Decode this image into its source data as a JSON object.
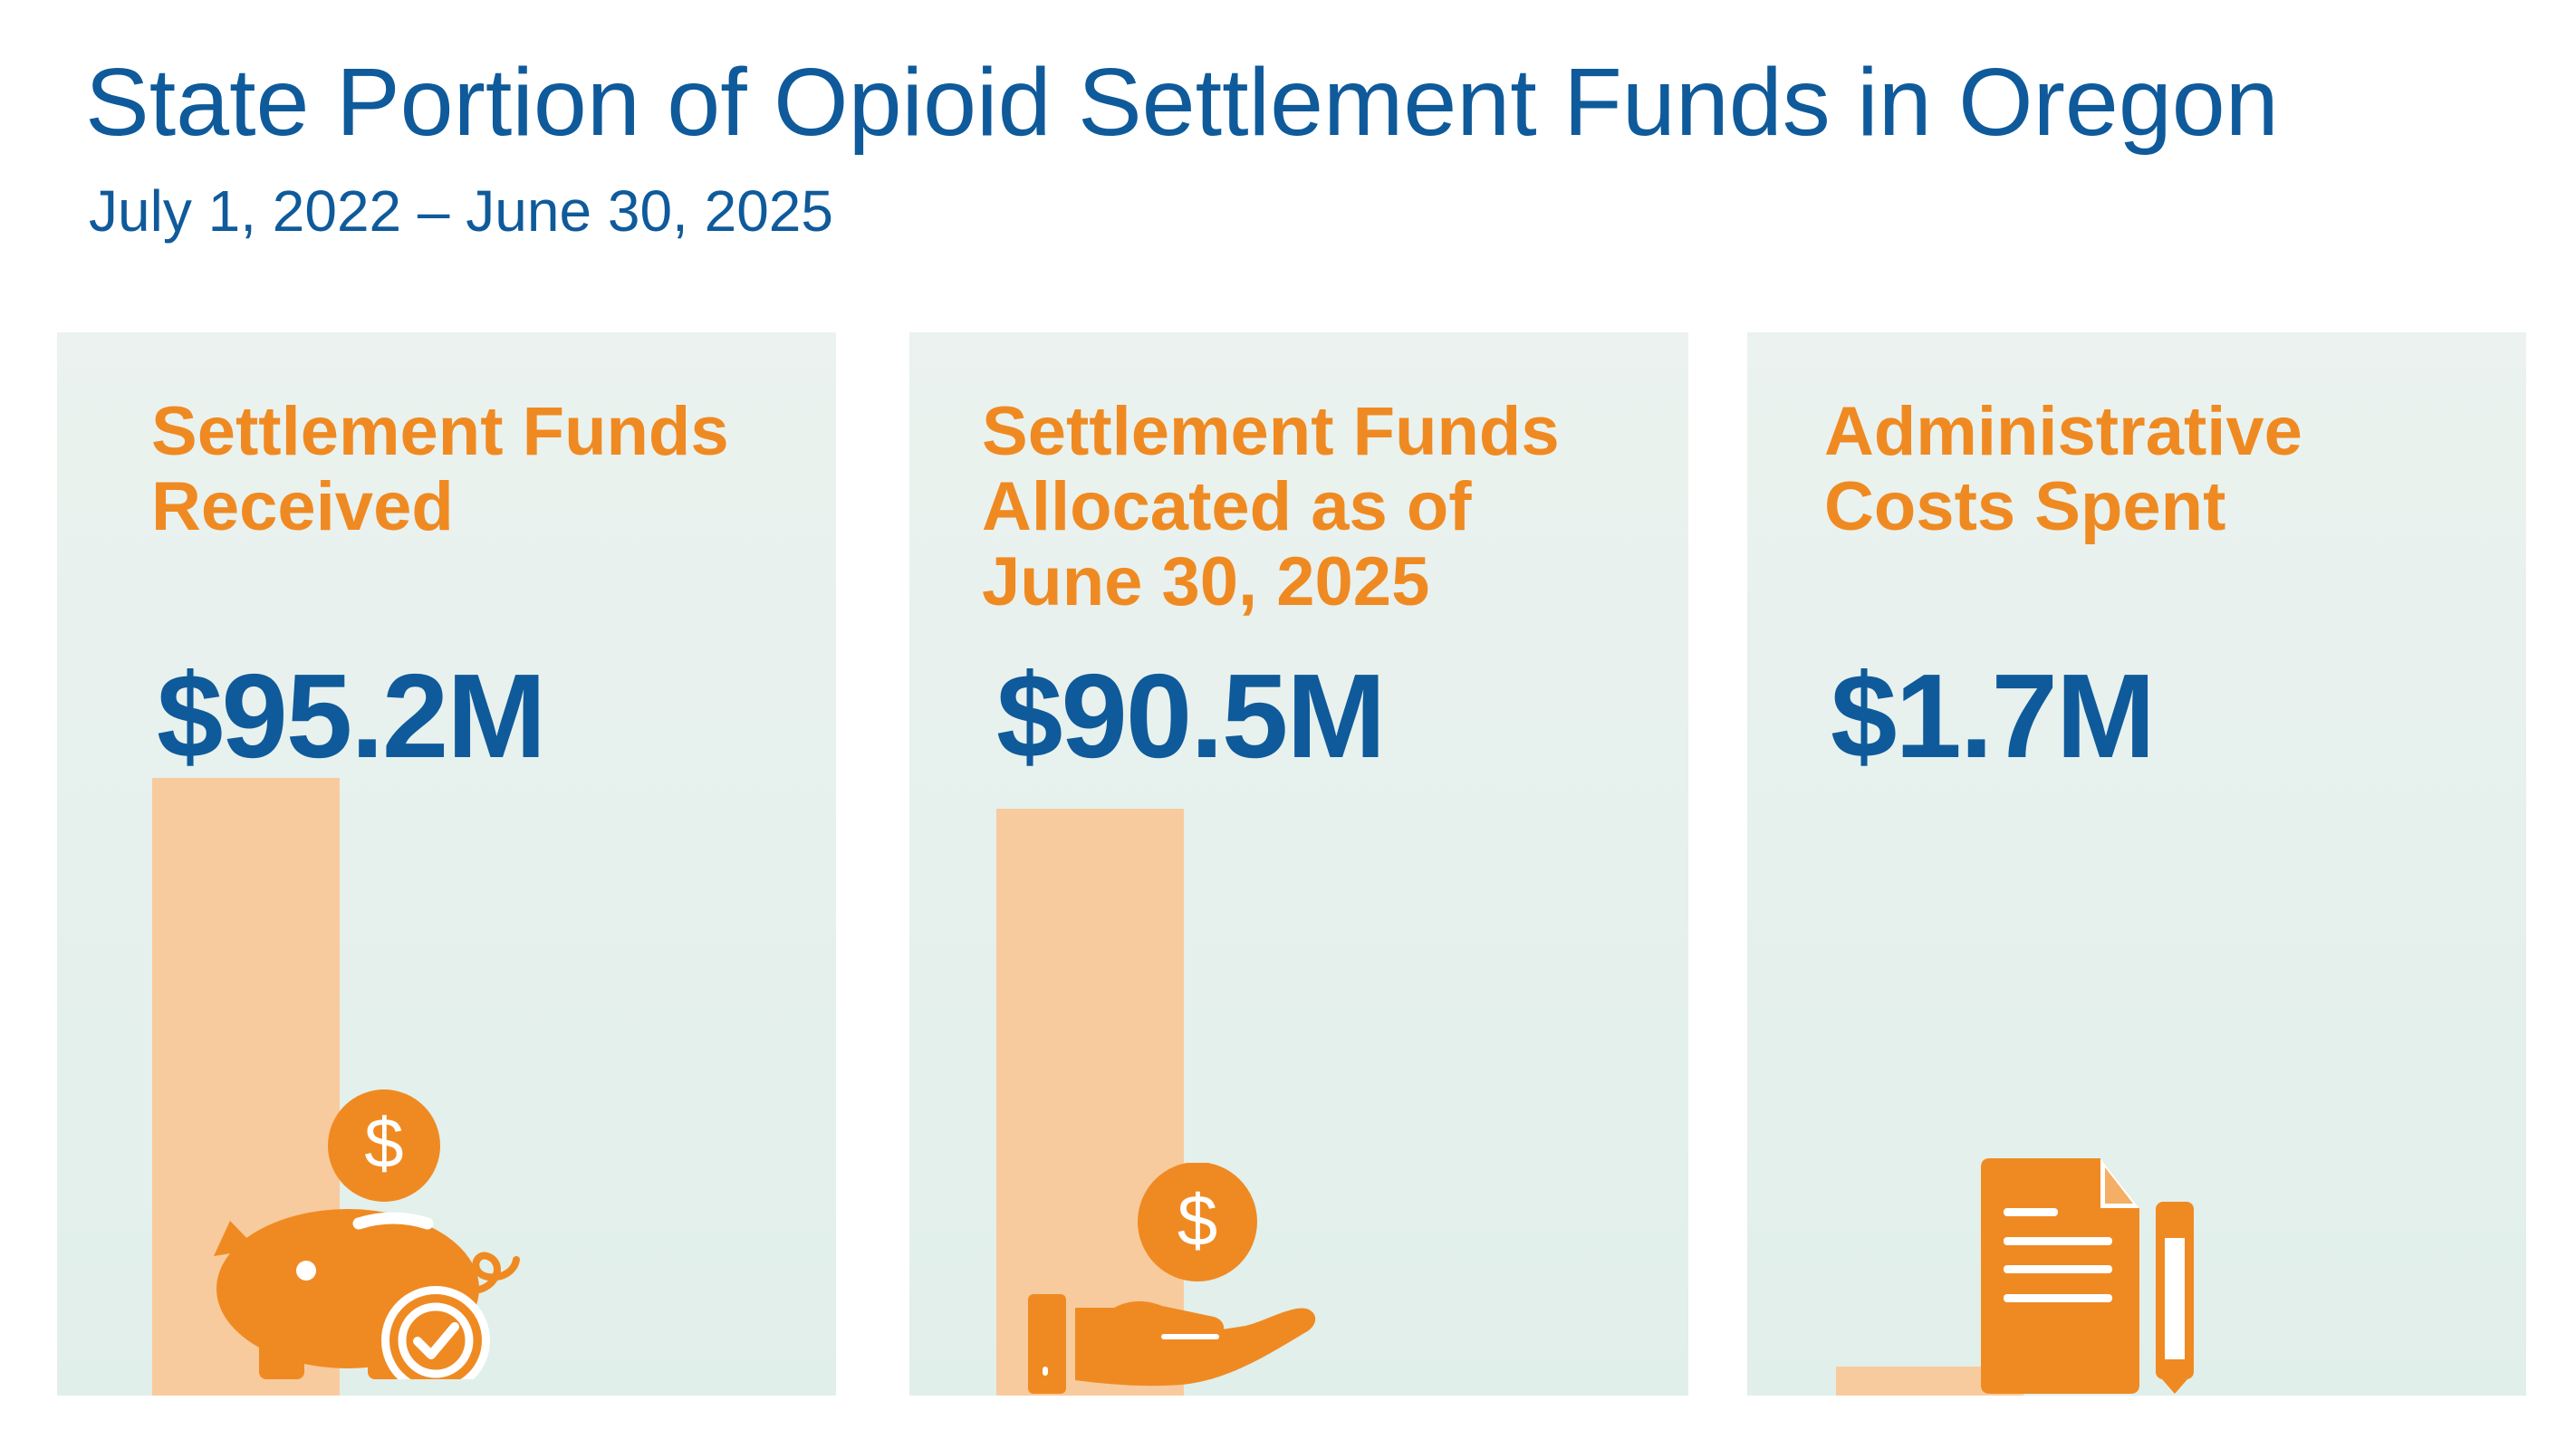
{
  "title": "State Portion of Opioid Settlement Funds in Oregon",
  "subtitle": "July 1, 2022 – June 30, 2025",
  "colors": {
    "title": "#0f5a9a",
    "label": "#ef8a22",
    "bar": "#f8cb9e",
    "panel_background": "#e5f0ec"
  },
  "panels": [
    {
      "label": "Settlement Funds\nReceived",
      "value_text": "$95.2M",
      "icon": "piggy-bank-icon"
    },
    {
      "label": "Settlement Funds\nAllocated as of\nJune 30, 2025",
      "value_text": "$90.5M",
      "icon": "hand-coin-icon"
    },
    {
      "label": "Administrative\nCosts Spent",
      "value_text": "$1.7M",
      "icon": "document-pencil-icon"
    }
  ],
  "chart_data": {
    "type": "bar",
    "categories": [
      "Settlement Funds Received",
      "Settlement Funds Allocated as of June 30, 2025",
      "Administrative Costs Spent"
    ],
    "values": [
      95.2,
      90.5,
      1.7
    ],
    "value_labels": [
      "$95.2M",
      "$90.5M",
      "$1.7M"
    ],
    "title": "State Portion of Opioid Settlement Funds in Oregon",
    "subtitle": "July 1, 2022 – June 30, 2025",
    "xlabel": "",
    "ylabel": "",
    "grid": false
  }
}
